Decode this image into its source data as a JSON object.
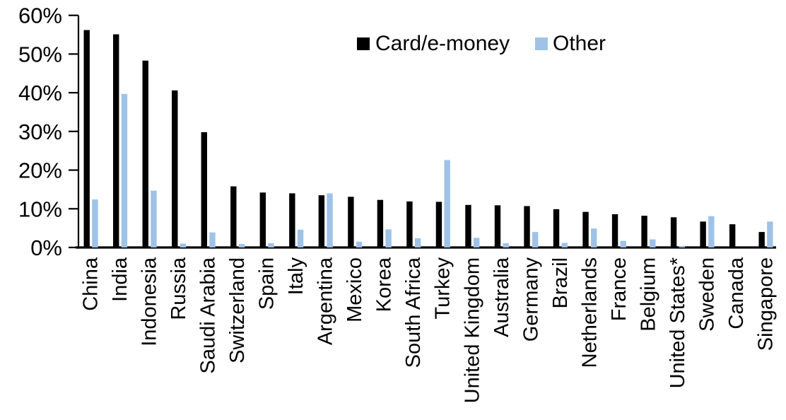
{
  "chart_data": {
    "type": "bar",
    "title": "",
    "xlabel": "",
    "ylabel": "",
    "categories": [
      "China",
      "India",
      "Indonesia",
      "Russia",
      "Saudi Arabia",
      "Switzerland",
      "Spain",
      "Italy",
      "Argentina",
      "Mexico",
      "Korea",
      "South Africa",
      "Turkey",
      "United Kingdom",
      "Australia",
      "Germany",
      "Brazil",
      "Netherlands",
      "France",
      "Belgium",
      "United States*",
      "Sweden",
      "Canada",
      "Singapore"
    ],
    "series": [
      {
        "name": "Card/e-money",
        "color": "#000000",
        "values": [
          56.2,
          55.1,
          48.3,
          40.6,
          29.8,
          15.8,
          14.2,
          14.0,
          13.5,
          13.1,
          12.3,
          11.9,
          11.8,
          11.0,
          10.9,
          10.7,
          9.9,
          9.2,
          8.6,
          8.2,
          7.8,
          6.7,
          6.0,
          4.0
        ]
      },
      {
        "name": "Other",
        "color": "#9fc3e7",
        "values": [
          12.4,
          39.7,
          14.7,
          1.0,
          3.9,
          0.9,
          1.1,
          4.6,
          14.0,
          1.5,
          4.7,
          2.4,
          22.6,
          2.5,
          1.1,
          4.0,
          1.2,
          4.9,
          1.7,
          2.1,
          0.4,
          8.1,
          0.0,
          6.7
        ]
      }
    ],
    "ylim": [
      0,
      60
    ],
    "ytick_step": 10,
    "ytick_labels": [
      "0%",
      "10%",
      "20%",
      "30%",
      "40%",
      "50%",
      "60%"
    ],
    "grid": false,
    "legend_position": "top-center",
    "axis_color": "#000000"
  }
}
